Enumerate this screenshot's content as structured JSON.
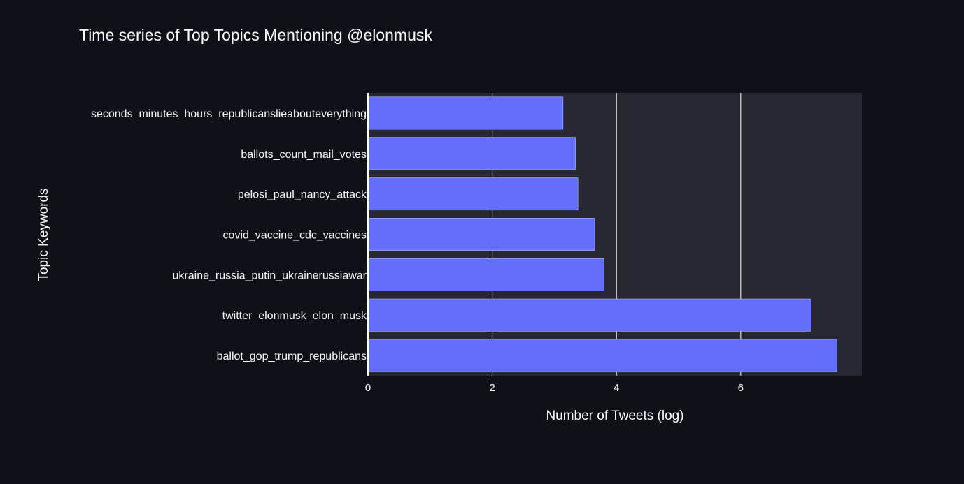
{
  "chart_data": {
    "type": "bar",
    "orientation": "horizontal",
    "title": "Time series of Top Topics Mentioning @elonmusk",
    "xlabel": "Number of Tweets (log)",
    "ylabel": "Topic Keywords",
    "xlim": [
      0,
      7.95
    ],
    "xticks": [
      0,
      2,
      4,
      6
    ],
    "grid": true,
    "categories": [
      "seconds_minutes_hours_republicanslieabouteverything",
      "ballots_count_mail_votes",
      "pelosi_paul_nancy_attack",
      "covid_vaccine_cdc_vaccines",
      "ukraine_russia_putin_ukrainerussiawar",
      "twitter_elonmusk_elon_musk",
      "ballot_gop_trump_republicans"
    ],
    "values": [
      3.14,
      3.34,
      3.38,
      3.65,
      3.8,
      7.13,
      7.55
    ],
    "colors": {
      "bar": "#636efa",
      "bar_edge": "#b8bdf5",
      "plot_bg": "#262730",
      "paper_bg": "#0e1117",
      "grid": "#ffffff",
      "text": "#fafafa"
    }
  }
}
